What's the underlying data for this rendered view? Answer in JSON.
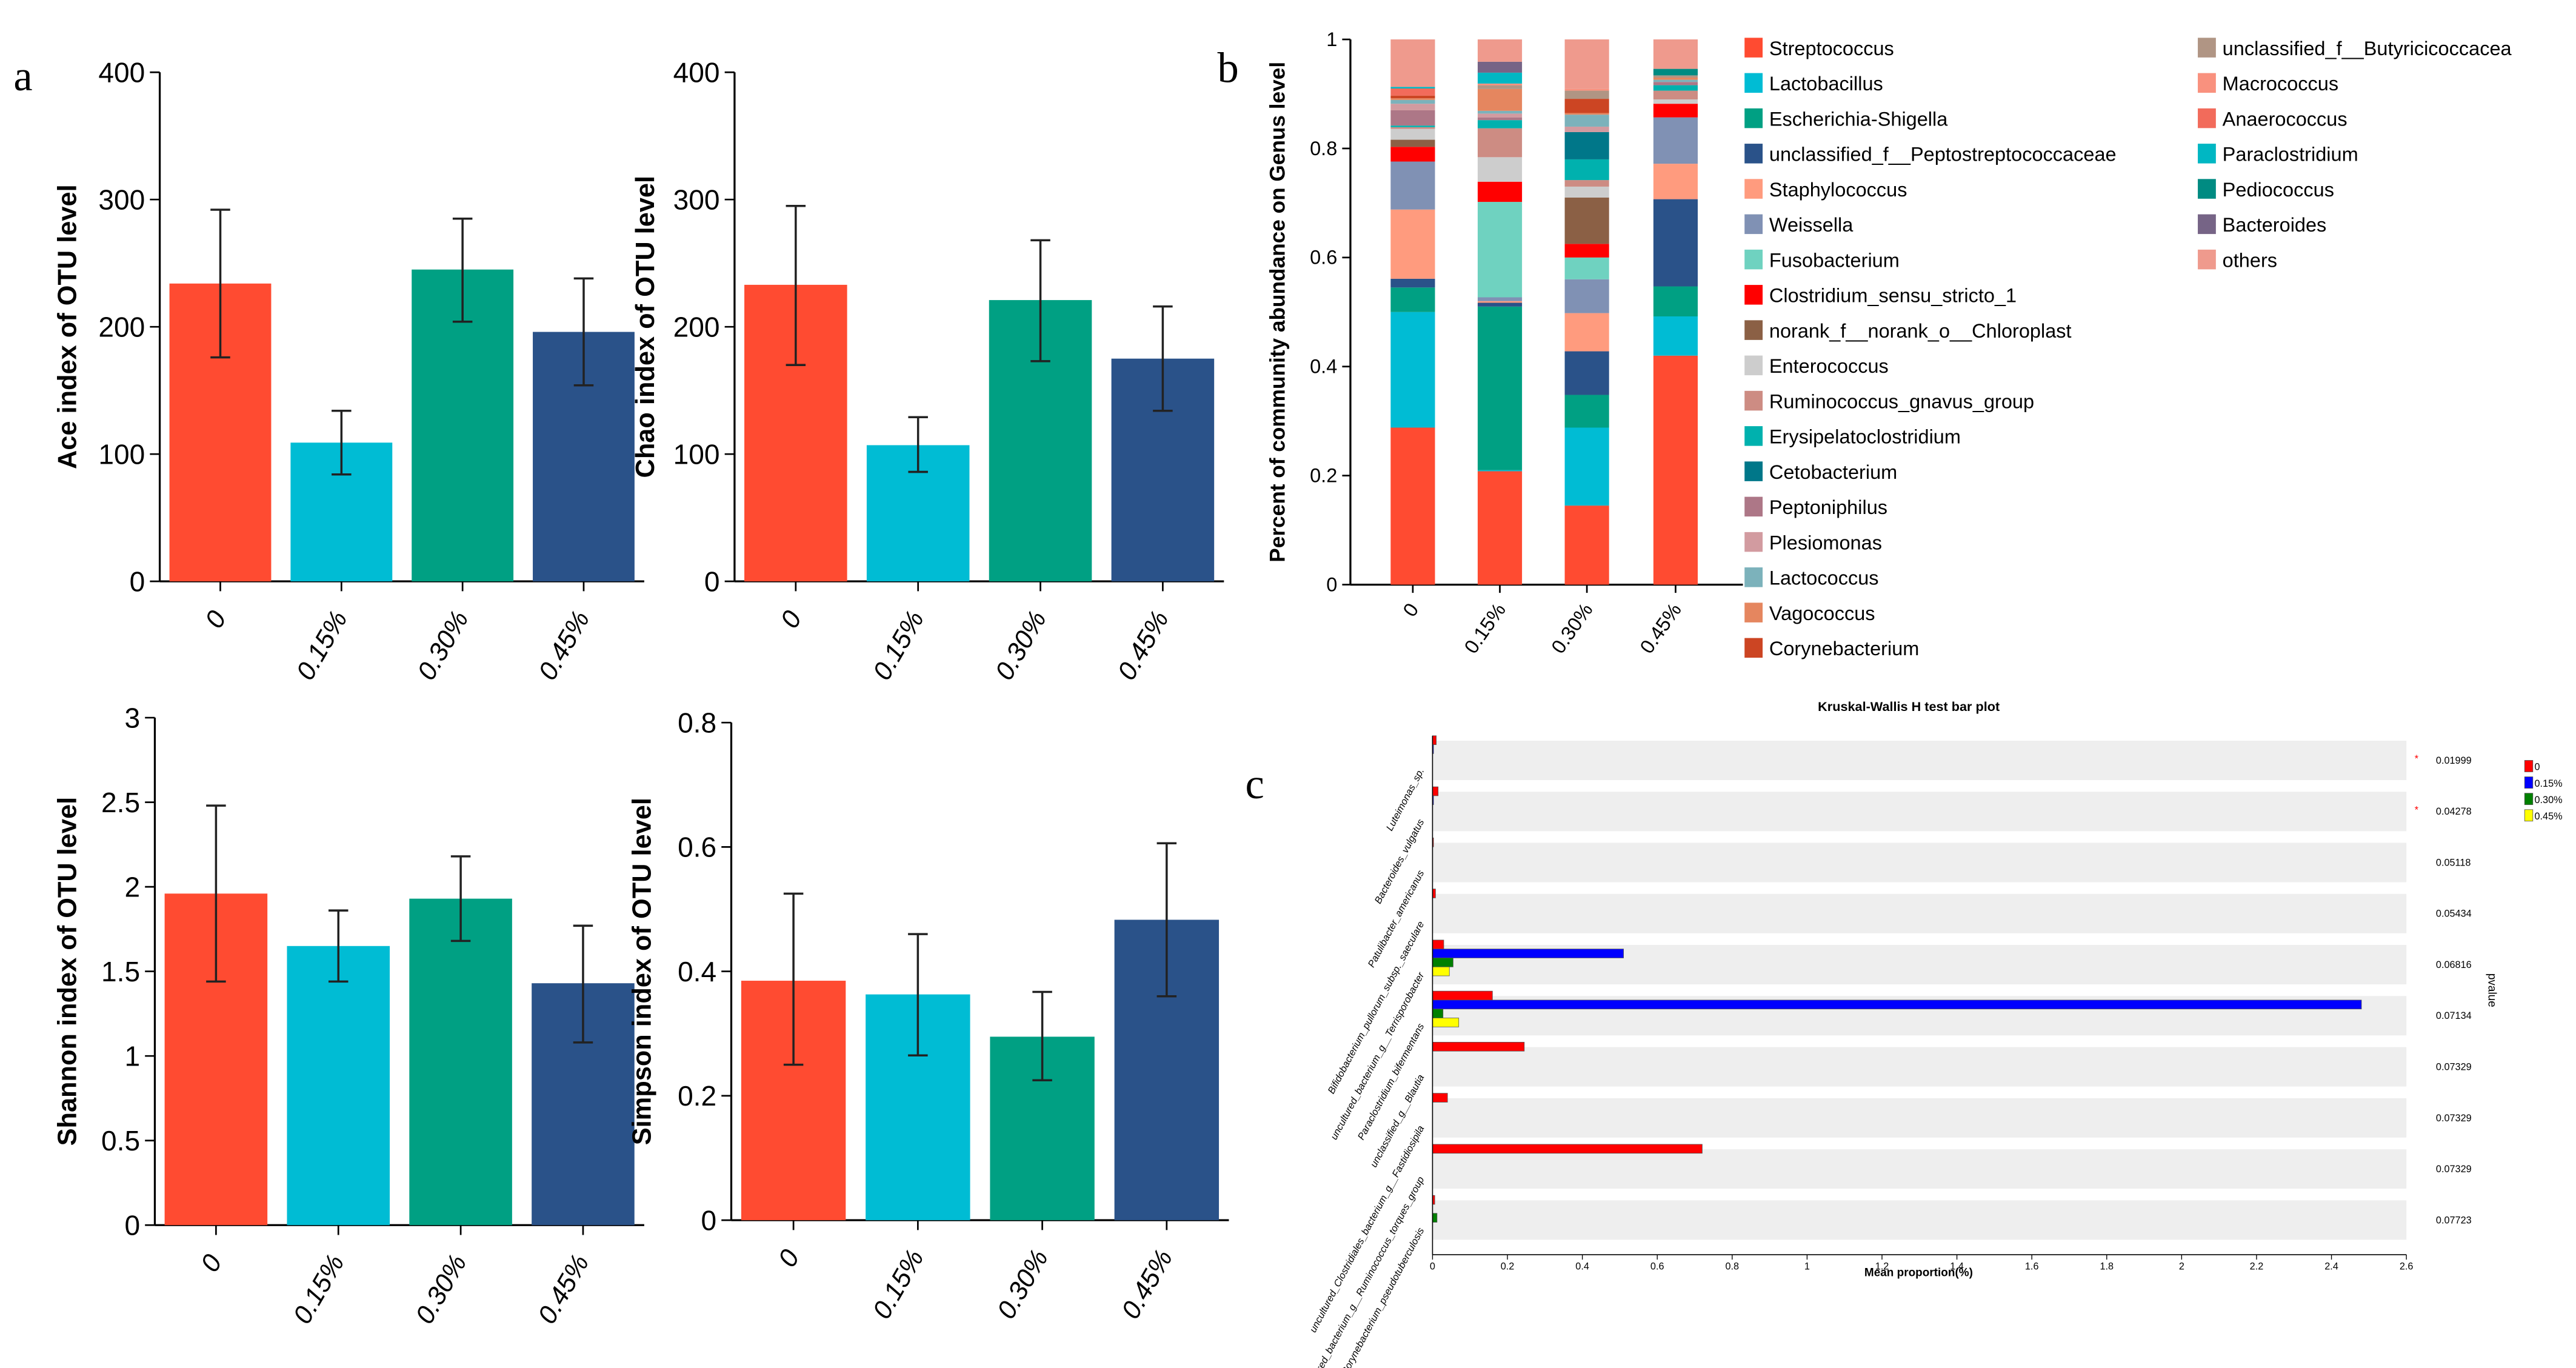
{
  "panel_labels": {
    "a": "a",
    "b": "b",
    "c": "c"
  },
  "chart_data": [
    {
      "id": "ace",
      "type": "bar",
      "title": "",
      "xlabel": "",
      "ylabel": "Ace index of OTU level",
      "categories": [
        "0",
        "0.15%",
        "0.30%",
        "0.45%"
      ],
      "values": [
        234,
        109,
        245,
        196
      ],
      "err_low": [
        176,
        84,
        204,
        154
      ],
      "err_high": [
        292,
        134,
        285,
        238
      ],
      "ylim": [
        0,
        400
      ],
      "yticks": [
        0,
        100,
        200,
        300,
        400
      ],
      "colors": [
        "#FF4B31",
        "#00BCD4",
        "#00A083",
        "#2A5289"
      ]
    },
    {
      "id": "chao",
      "type": "bar",
      "title": "",
      "xlabel": "",
      "ylabel": "Chao index of OTU level",
      "categories": [
        "0",
        "0.15%",
        "0.30%",
        "0.45%"
      ],
      "values": [
        233,
        107,
        221,
        175
      ],
      "err_low": [
        170,
        86,
        173,
        134
      ],
      "err_high": [
        295,
        129,
        268,
        216
      ],
      "ylim": [
        0,
        400
      ],
      "yticks": [
        0,
        100,
        200,
        300,
        400
      ],
      "colors": [
        "#FF4B31",
        "#00BCD4",
        "#00A083",
        "#2A5289"
      ]
    },
    {
      "id": "shannon",
      "type": "bar",
      "title": "",
      "xlabel": "",
      "ylabel": "Shannon index of OTU level",
      "categories": [
        "0",
        "0.15%",
        "0.30%",
        "0.45%"
      ],
      "values": [
        1.96,
        1.65,
        1.93,
        1.43
      ],
      "err_low": [
        1.44,
        1.44,
        1.68,
        1.08
      ],
      "err_high": [
        2.48,
        1.86,
        2.18,
        1.77
      ],
      "ylim": [
        0,
        3
      ],
      "yticks": [
        "0",
        "0.5",
        "1",
        "1.5",
        "2",
        "2.5",
        "3"
      ],
      "colors": [
        "#FF4B31",
        "#00BCD4",
        "#00A083",
        "#2A5289"
      ]
    },
    {
      "id": "simpson",
      "type": "bar",
      "title": "",
      "xlabel": "",
      "ylabel": "Simpson index of OTU level",
      "categories": [
        "0",
        "0.15%",
        "0.30%",
        "0.45%"
      ],
      "values": [
        0.385,
        0.363,
        0.295,
        0.483
      ],
      "err_low": [
        0.25,
        0.265,
        0.225,
        0.36
      ],
      "err_high": [
        0.525,
        0.46,
        0.367,
        0.606
      ],
      "ylim": [
        0,
        0.8
      ],
      "yticks": [
        "0",
        "0.2",
        "0.4",
        "0.6",
        "0.8"
      ],
      "colors": [
        "#FF4B31",
        "#00BCD4",
        "#00A083",
        "#2A5289"
      ]
    },
    {
      "id": "community",
      "type": "bar",
      "stacked": true,
      "title": "",
      "ylabel": "Percent of community abundance on Genus level",
      "categories": [
        "0",
        "0.15%",
        "0.30%",
        "0.45%"
      ],
      "ylim": [
        0,
        1
      ],
      "yticks": [
        "0",
        "0.2",
        "0.4",
        "0.6",
        "0.8",
        "1"
      ],
      "legend_position": "right",
      "series": [
        {
          "name": "Streptococcus",
          "color": "#FF4B31",
          "values": [
            0.288,
            0.208,
            0.145,
            0.42
          ]
        },
        {
          "name": "Lactobacillus",
          "color": "#00BCD4",
          "values": [
            0.212,
            0.002,
            0.143,
            0.072
          ]
        },
        {
          "name": "Escherichia-Shigella",
          "color": "#00A083",
          "values": [
            0.045,
            0.3,
            0.06,
            0.055
          ]
        },
        {
          "name": "unclassified_f__Peptostreptococcaceae",
          "color": "#2A5289",
          "values": [
            0.016,
            0.007,
            0.08,
            0.16
          ]
        },
        {
          "name": "Staphylococcus",
          "color": "#FF9B7E",
          "values": [
            0.127,
            0.003,
            0.07,
            0.065
          ]
        },
        {
          "name": "Weissella",
          "color": "#8091B4",
          "values": [
            0.088,
            0.007,
            0.062,
            0.085
          ]
        },
        {
          "name": "Fusobacterium",
          "color": "#6FD2C0",
          "values": [
            0,
            0.175,
            0.04,
            0
          ]
        },
        {
          "name": "Clostridium_sensu_stricto_1",
          "color": "#FF0000",
          "values": [
            0.027,
            0.037,
            0.025,
            0.025
          ]
        },
        {
          "name": "norank_f__norank_o__Chloroplast",
          "color": "#8B6045",
          "values": [
            0.013,
            0,
            0.085,
            0
          ]
        },
        {
          "name": "Enterococcus",
          "color": "#CDCDCD",
          "values": [
            0.02,
            0.045,
            0.02,
            0.008
          ]
        },
        {
          "name": "Ruminococcus_gnavus_group",
          "color": "#CD8C83",
          "values": [
            0.003,
            0.053,
            0.012,
            0.016
          ]
        },
        {
          "name": "Erysipelatoclostridium",
          "color": "#00B1AE",
          "values": [
            0.003,
            0.015,
            0.038,
            0.01
          ]
        },
        {
          "name": "Cetobacterium",
          "color": "#007789",
          "values": [
            0,
            0,
            0.05,
            0
          ]
        },
        {
          "name": "Peptoniphilus",
          "color": "#AD7787",
          "values": [
            0.028,
            0.005,
            0,
            0.006
          ]
        },
        {
          "name": "Plesiomonas",
          "color": "#D29BA0",
          "values": [
            0.012,
            0.007,
            0.01,
            0
          ]
        },
        {
          "name": "Lactococcus",
          "color": "#7CB2BB",
          "values": [
            0.007,
            0.005,
            0.022,
            0.004
          ]
        },
        {
          "name": "Vagococcus",
          "color": "#E5865F",
          "values": [
            0.003,
            0.04,
            0.003,
            0.004
          ]
        },
        {
          "name": "Corynebacterium",
          "color": "#CC4523",
          "values": [
            0.005,
            0,
            0.026,
            0
          ]
        },
        {
          "name": "unclassified_f__Butyricicoccacea",
          "color": "#B09584",
          "values": [
            0,
            0.007,
            0.015,
            0.004
          ]
        },
        {
          "name": "Macrococcus",
          "color": "#F9917E",
          "values": [
            0,
            0.003,
            0.003,
            0
          ]
        },
        {
          "name": "Anaerococcus",
          "color": "#F26B5B",
          "values": [
            0.013,
            0,
            0,
            0
          ]
        },
        {
          "name": "Paraclostridium",
          "color": "#00B7C3",
          "values": [
            0.003,
            0.02,
            0,
            0
          ]
        },
        {
          "name": "Pediococcus",
          "color": "#008B82",
          "values": [
            0,
            0,
            0,
            0.012
          ]
        },
        {
          "name": "Bacteroides",
          "color": "#766486",
          "values": [
            0,
            0.02,
            0,
            0
          ]
        },
        {
          "name": "others",
          "color": "#EF9A8D",
          "values": [
            0.087,
            0.041,
            0.091,
            0.054
          ]
        }
      ]
    },
    {
      "id": "kruskal",
      "type": "bar",
      "orientation": "horizontal",
      "title": "Kruskal-Wallis H test bar plot",
      "xlabel": "Mean proportion(%)",
      "pvalue_label": "pvalue",
      "xlim": [
        0,
        2.6
      ],
      "xticks": [
        "0",
        "0.2",
        "0.4",
        "0.6",
        "0.8",
        "1",
        "1.2",
        "1.4",
        "1.6",
        "1.8",
        "2",
        "2.2",
        "2.4",
        "2.6"
      ],
      "legend_position": "top-right",
      "groups": [
        {
          "name": "0",
          "color": "#FF0000"
        },
        {
          "name": "0.15%",
          "color": "#0000FF"
        },
        {
          "name": "0.30%",
          "color": "#008000"
        },
        {
          "name": "0.45%",
          "color": "#FFFF00"
        }
      ],
      "rows": [
        {
          "label": "Luteimonas_sp.",
          "values": [
            0.01,
            0.002,
            0,
            0
          ],
          "pvalue": "0.01999",
          "sig": "*"
        },
        {
          "label": "Bacteroides_vulgatus",
          "values": [
            0.015,
            0.002,
            0,
            0
          ],
          "pvalue": "0.04278",
          "sig": "*"
        },
        {
          "label": "Patulibacter_americanus",
          "values": [
            0.001,
            0,
            0,
            0
          ],
          "pvalue": "0.05118",
          "sig": ""
        },
        {
          "label": "Bifidobacterium_pullorum_subsp._saeculare",
          "values": [
            0.008,
            0,
            0,
            0
          ],
          "pvalue": "0.05434",
          "sig": ""
        },
        {
          "label": "uncultured_bacterium_g__Terrisporobacter",
          "values": [
            0.03,
            0.51,
            0.055,
            0.045
          ],
          "pvalue": "0.06816",
          "sig": ""
        },
        {
          "label": "Paraclostridium_bifermentans",
          "values": [
            0.16,
            2.48,
            0.028,
            0.07
          ],
          "pvalue": "0.07134",
          "sig": ""
        },
        {
          "label": "unclassified_g__Blautia",
          "values": [
            0.245,
            0,
            0,
            0
          ],
          "pvalue": "0.07329",
          "sig": ""
        },
        {
          "label": "uncultured_Clostridiales_bacterium_g__Fastidiosipila",
          "values": [
            0.04,
            0,
            0,
            0
          ],
          "pvalue": "0.07329",
          "sig": ""
        },
        {
          "label": "uncultured_bacterium_g__Ruminococcus_torques_group",
          "values": [
            0.72,
            0,
            0,
            0
          ],
          "pvalue": "0.07329",
          "sig": ""
        },
        {
          "label": "Corynebacterium_pseudotuberculosis",
          "values": [
            0.006,
            0,
            0.012,
            0
          ],
          "pvalue": "0.07723",
          "sig": ""
        }
      ]
    }
  ]
}
